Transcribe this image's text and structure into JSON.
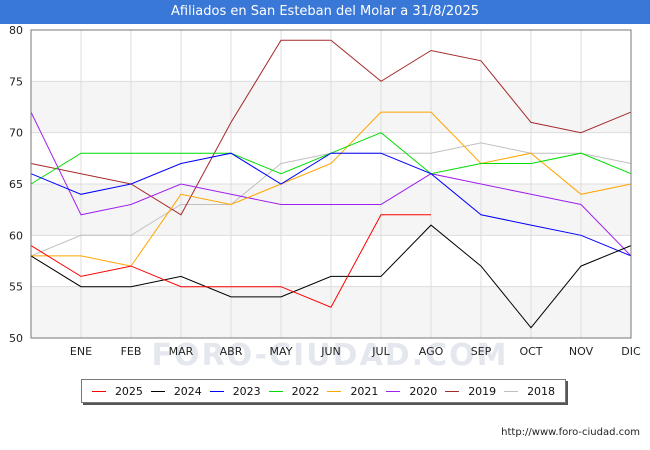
{
  "title": "Afiliados en San Esteban del Molar a 31/8/2025",
  "source": "http://www.foro-ciudad.com",
  "watermark": "FORO-CIUDAD.COM",
  "chart_data": {
    "type": "line",
    "categories": [
      "",
      "ENE",
      "FEB",
      "MAR",
      "ABR",
      "MAY",
      "JUN",
      "JUL",
      "AGO",
      "SEP",
      "OCT",
      "NOV",
      "DIC"
    ],
    "ylim": [
      50,
      80
    ],
    "yticks": [
      50,
      55,
      60,
      65,
      70,
      75,
      80
    ],
    "grid": true,
    "legend_position": "bottom",
    "series": [
      {
        "name": "2025",
        "color": "#ff0000",
        "values": [
          59,
          56,
          57,
          55,
          55,
          55,
          53,
          62,
          62,
          null,
          null,
          null,
          null
        ]
      },
      {
        "name": "2024",
        "color": "#000000",
        "values": [
          58,
          55,
          55,
          56,
          54,
          54,
          56,
          56,
          61,
          57,
          51,
          57,
          59
        ]
      },
      {
        "name": "2023",
        "color": "#0000ff",
        "values": [
          66,
          64,
          65,
          67,
          68,
          65,
          68,
          68,
          66,
          62,
          61,
          60,
          58
        ]
      },
      {
        "name": "2022",
        "color": "#00dd00",
        "values": [
          65,
          68,
          68,
          68,
          68,
          66,
          68,
          70,
          66,
          67,
          67,
          68,
          66
        ]
      },
      {
        "name": "2021",
        "color": "#ffa500",
        "values": [
          58,
          58,
          57,
          64,
          63,
          65,
          67,
          72,
          72,
          67,
          68,
          64,
          65
        ]
      },
      {
        "name": "2020",
        "color": "#a020f0",
        "values": [
          72,
          62,
          63,
          65,
          64,
          63,
          63,
          63,
          66,
          65,
          64,
          63,
          58
        ]
      },
      {
        "name": "2019",
        "color": "#a52a2a",
        "values": [
          67,
          66,
          65,
          62,
          71,
          79,
          79,
          75,
          78,
          77,
          71,
          70,
          72
        ]
      },
      {
        "name": "2018",
        "color": "#c0c0c0",
        "values": [
          58,
          60,
          60,
          63,
          63,
          67,
          68,
          68,
          68,
          69,
          68,
          68,
          67
        ]
      }
    ]
  }
}
